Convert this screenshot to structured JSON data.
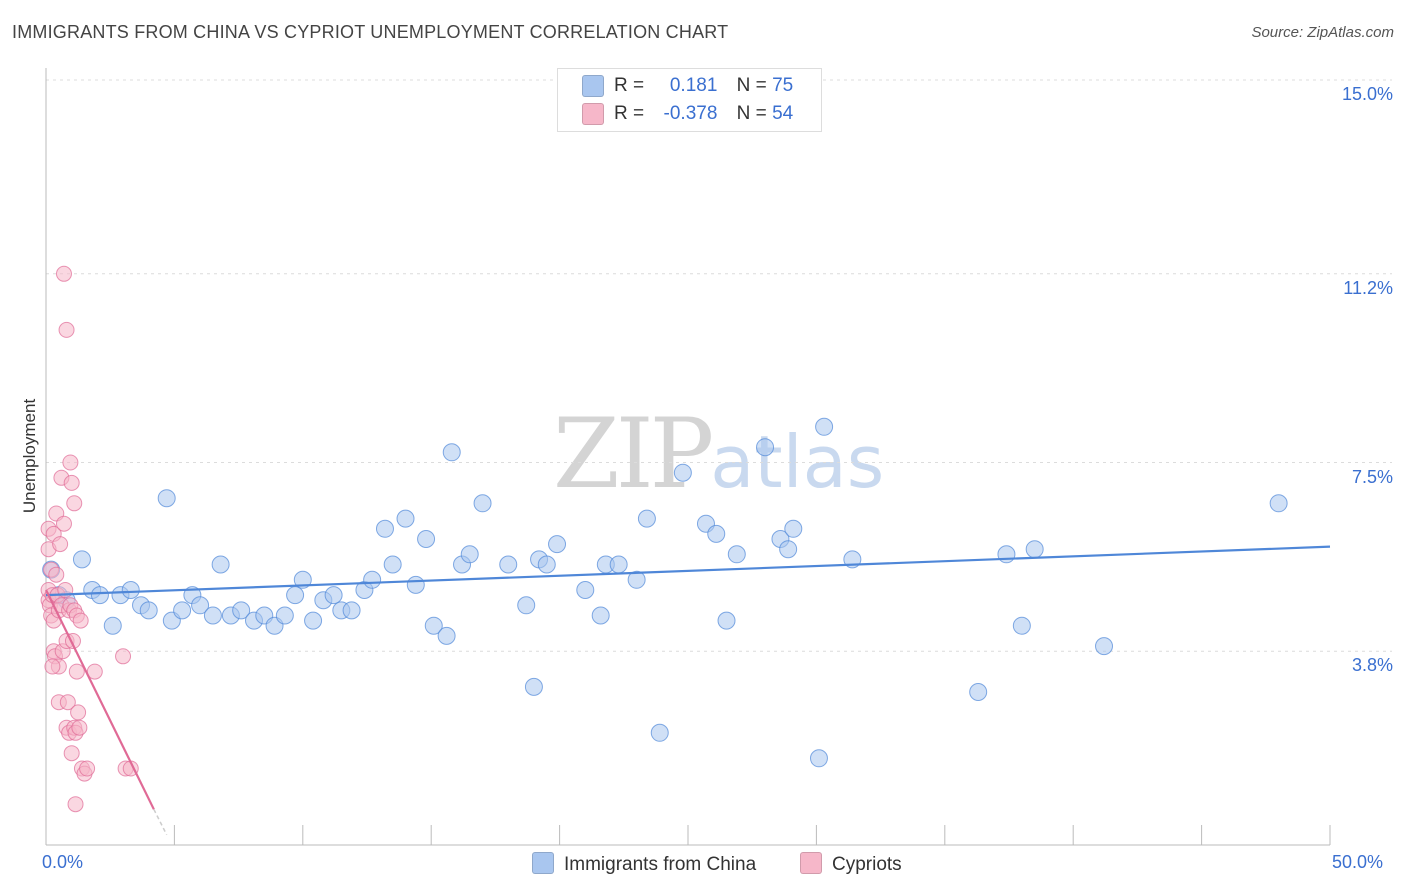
{
  "header": {
    "title": "IMMIGRANTS FROM CHINA VS CYPRIOT UNEMPLOYMENT CORRELATION CHART",
    "source": "Source: ZipAtlas.com"
  },
  "watermark": {
    "zip": "ZIP",
    "atlas": "atlas"
  },
  "legend": {
    "rows": [
      {
        "r_label": "R =",
        "r_value": "0.181",
        "n_label": "N =",
        "n_value": "75",
        "color": "#a9c6ef"
      },
      {
        "r_label": "R =",
        "r_value": "-0.378",
        "n_label": "N =",
        "n_value": "54",
        "color": "#f6b7c9"
      }
    ]
  },
  "bottom_legend": [
    {
      "label": "Immigrants from China",
      "color": "#a9c6ef"
    },
    {
      "label": "Cypriots",
      "color": "#f6b7c9"
    }
  ],
  "chart_data": {
    "type": "scatter",
    "xlabel": "",
    "ylabel": "Unemployment",
    "xlim": [
      0,
      50
    ],
    "ylim": [
      0,
      15
    ],
    "x_tick_labels": [
      "0.0%",
      "50.0%"
    ],
    "y_ticks": [
      3.8,
      7.5,
      11.2,
      15.0
    ],
    "y_tick_labels": [
      "3.8%",
      "7.5%",
      "11.2%",
      "15.0%"
    ],
    "grid": true,
    "series": [
      {
        "name": "Immigrants from China",
        "color": "#4f87d8",
        "fill": "#a9c6ef",
        "trend": {
          "x": [
            0,
            50
          ],
          "y": [
            4.9,
            5.85
          ]
        },
        "points": [
          [
            0.2,
            5.4
          ],
          [
            0.5,
            4.9
          ],
          [
            0.8,
            4.8
          ],
          [
            1.4,
            5.6
          ],
          [
            1.8,
            5.0
          ],
          [
            2.1,
            4.9
          ],
          [
            2.6,
            4.3
          ],
          [
            2.9,
            4.9
          ],
          [
            3.3,
            5.0
          ],
          [
            3.7,
            4.7
          ],
          [
            4.0,
            4.6
          ],
          [
            4.7,
            6.8
          ],
          [
            4.9,
            4.4
          ],
          [
            5.3,
            4.6
          ],
          [
            5.7,
            4.9
          ],
          [
            6.0,
            4.7
          ],
          [
            6.5,
            4.5
          ],
          [
            6.8,
            5.5
          ],
          [
            7.2,
            4.5
          ],
          [
            7.6,
            4.6
          ],
          [
            8.1,
            4.4
          ],
          [
            8.5,
            4.5
          ],
          [
            8.9,
            4.3
          ],
          [
            9.3,
            4.5
          ],
          [
            9.7,
            4.9
          ],
          [
            10.0,
            5.2
          ],
          [
            10.4,
            4.4
          ],
          [
            10.8,
            4.8
          ],
          [
            11.2,
            4.9
          ],
          [
            11.5,
            4.6
          ],
          [
            11.9,
            4.6
          ],
          [
            12.4,
            5.0
          ],
          [
            12.7,
            5.2
          ],
          [
            13.2,
            6.2
          ],
          [
            13.5,
            5.5
          ],
          [
            14.0,
            6.4
          ],
          [
            14.4,
            5.1
          ],
          [
            14.8,
            6.0
          ],
          [
            15.1,
            4.3
          ],
          [
            15.6,
            4.1
          ],
          [
            15.8,
            7.7
          ],
          [
            16.2,
            5.5
          ],
          [
            16.5,
            5.7
          ],
          [
            17.0,
            6.7
          ],
          [
            18.0,
            5.5
          ],
          [
            18.7,
            4.7
          ],
          [
            19.0,
            3.1
          ],
          [
            19.2,
            5.6
          ],
          [
            19.5,
            5.5
          ],
          [
            19.9,
            5.9
          ],
          [
            21.0,
            5.0
          ],
          [
            21.6,
            4.5
          ],
          [
            21.8,
            5.5
          ],
          [
            22.3,
            5.5
          ],
          [
            23.0,
            5.2
          ],
          [
            23.4,
            6.4
          ],
          [
            23.9,
            2.2
          ],
          [
            24.8,
            7.3
          ],
          [
            25.7,
            6.3
          ],
          [
            26.1,
            6.1
          ],
          [
            26.5,
            4.4
          ],
          [
            26.9,
            5.7
          ],
          [
            28.0,
            7.8
          ],
          [
            28.6,
            6.0
          ],
          [
            28.9,
            5.8
          ],
          [
            29.1,
            6.2
          ],
          [
            30.1,
            1.7
          ],
          [
            30.3,
            8.2
          ],
          [
            31.4,
            5.6
          ],
          [
            36.3,
            3.0
          ],
          [
            37.4,
            5.7
          ],
          [
            38.0,
            4.3
          ],
          [
            38.5,
            5.8
          ],
          [
            41.2,
            3.9
          ],
          [
            48.0,
            6.7
          ]
        ]
      },
      {
        "name": "Cypriots",
        "color": "#e06a96",
        "fill": "#f6b7c9",
        "trend": {
          "x": [
            0,
            4.2
          ],
          "y": [
            5.0,
            0.7
          ]
        },
        "trend_dashed": {
          "x": [
            4.2,
            4.7
          ],
          "y": [
            0.7,
            0.2
          ]
        },
        "points": [
          [
            0.1,
            4.8
          ],
          [
            0.1,
            5.0
          ],
          [
            0.1,
            6.2
          ],
          [
            0.1,
            5.8
          ],
          [
            0.15,
            4.7
          ],
          [
            0.2,
            4.5
          ],
          [
            0.2,
            5.4
          ],
          [
            0.25,
            4.9
          ],
          [
            0.3,
            6.1
          ],
          [
            0.3,
            4.4
          ],
          [
            0.3,
            3.8
          ],
          [
            0.35,
            3.7
          ],
          [
            0.4,
            6.5
          ],
          [
            0.4,
            5.3
          ],
          [
            0.45,
            4.9
          ],
          [
            0.5,
            3.5
          ],
          [
            0.5,
            4.6
          ],
          [
            0.5,
            2.8
          ],
          [
            0.55,
            5.9
          ],
          [
            0.6,
            7.2
          ],
          [
            0.6,
            4.7
          ],
          [
            0.65,
            3.8
          ],
          [
            0.7,
            11.2
          ],
          [
            0.7,
            6.3
          ],
          [
            0.75,
            5.0
          ],
          [
            0.8,
            10.1
          ],
          [
            0.8,
            4.0
          ],
          [
            0.8,
            2.3
          ],
          [
            0.85,
            2.8
          ],
          [
            0.9,
            4.6
          ],
          [
            0.9,
            2.2
          ],
          [
            0.95,
            7.5
          ],
          [
            0.95,
            4.7
          ],
          [
            1.0,
            7.1
          ],
          [
            1.0,
            1.8
          ],
          [
            1.05,
            4.0
          ],
          [
            1.1,
            6.7
          ],
          [
            1.1,
            4.6
          ],
          [
            1.1,
            2.3
          ],
          [
            1.15,
            2.2
          ],
          [
            1.15,
            0.8
          ],
          [
            1.2,
            4.5
          ],
          [
            1.2,
            3.4
          ],
          [
            1.25,
            2.6
          ],
          [
            1.3,
            2.3
          ],
          [
            1.35,
            4.4
          ],
          [
            1.4,
            1.5
          ],
          [
            1.5,
            1.4
          ],
          [
            1.6,
            1.5
          ],
          [
            1.9,
            3.4
          ],
          [
            3.0,
            3.7
          ],
          [
            3.1,
            1.5
          ],
          [
            3.3,
            1.5
          ],
          [
            0.25,
            3.5
          ]
        ]
      }
    ]
  }
}
